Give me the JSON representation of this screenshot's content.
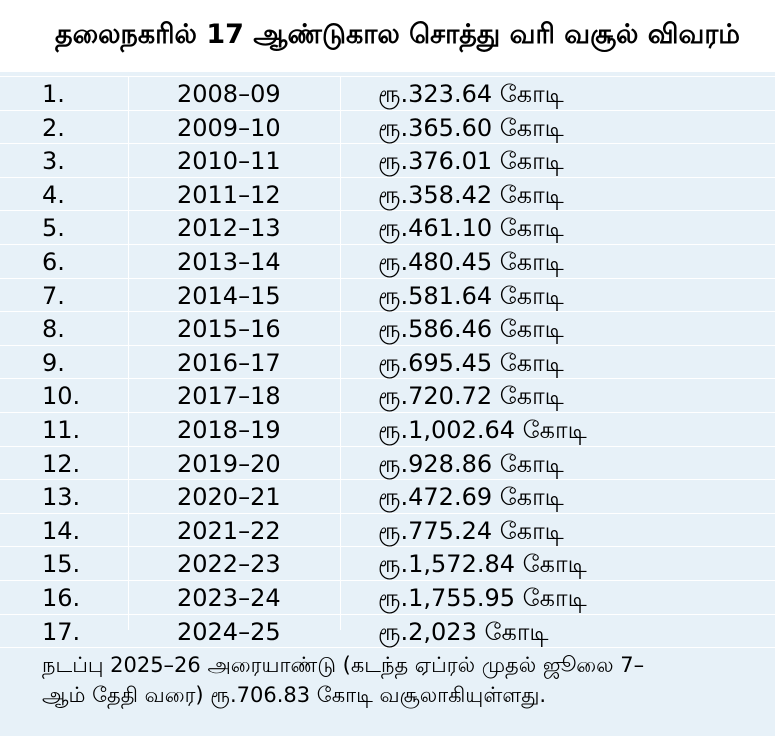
{
  "title": "தலைநகரில் 17 ஆண்டுகால சொத்து வரி வசூல் விவரம்",
  "rows": [
    {
      "num": "1.",
      "year": "2008–09",
      "amount": "ரூ.323.64 கோடி"
    },
    {
      "num": "2.",
      "year": "2009–10",
      "amount": "ரூ.365.60 கோடி"
    },
    {
      "num": "3.",
      "year": "2010–11",
      "amount": "ரூ.376.01 கோடி"
    },
    {
      "num": "4.",
      "year": "2011–12",
      "amount": "ரூ.358.42 கோடி"
    },
    {
      "num": "5.",
      "year": "2012–13",
      "amount": "ரூ.461.10 கோடி"
    },
    {
      "num": "6.",
      "year": "2013–14",
      "amount": "ரூ.480.45 கோடி"
    },
    {
      "num": "7.",
      "year": "2014–15",
      "amount": "ரூ.581.64 கோடி"
    },
    {
      "num": "8.",
      "year": "2015–16",
      "amount": "ரூ.586.46 கோடி"
    },
    {
      "num": "9.",
      "year": "2016–17",
      "amount": "ரூ.695.45 கோடி"
    },
    {
      "num": "10.",
      "year": "2017–18",
      "amount": "ரூ.720.72 கோடி"
    },
    {
      "num": "11.",
      "year": "2018–19",
      "amount": "ரூ.1,002.64 கோடி"
    },
    {
      "num": "12.",
      "year": "2019–20",
      "amount": "ரூ.928.86 கோடி"
    },
    {
      "num": "13.",
      "year": "2020–21",
      "amount": "ரூ.472.69 கோடி"
    },
    {
      "num": "14.",
      "year": "2021–22",
      "amount": "ரூ.775.24 கோடி"
    },
    {
      "num": "15.",
      "year": "2022–23",
      "amount": "ரூ.1,572.84 கோடி"
    },
    {
      "num": "16.",
      "year": "2023–24",
      "amount": "ரூ.1,755.95 கோடி"
    },
    {
      "num": "17.",
      "year": "2024–25",
      "amount": "ரூ.2,023 கோடி"
    }
  ],
  "footnote": {
    "line1": "நடப்பு 2025–26 அரையாண்டு (கடந்த ஏப்ரல் முதல் ஜூலை 7–",
    "line2": "ஆம் தேதி வரை) ரூ.706.83 கோடி வசூலாகியுள்ளது."
  },
  "colors": {
    "background": "#e7f1f8",
    "title_background": "#ffffff",
    "rule": "#ffffff"
  }
}
